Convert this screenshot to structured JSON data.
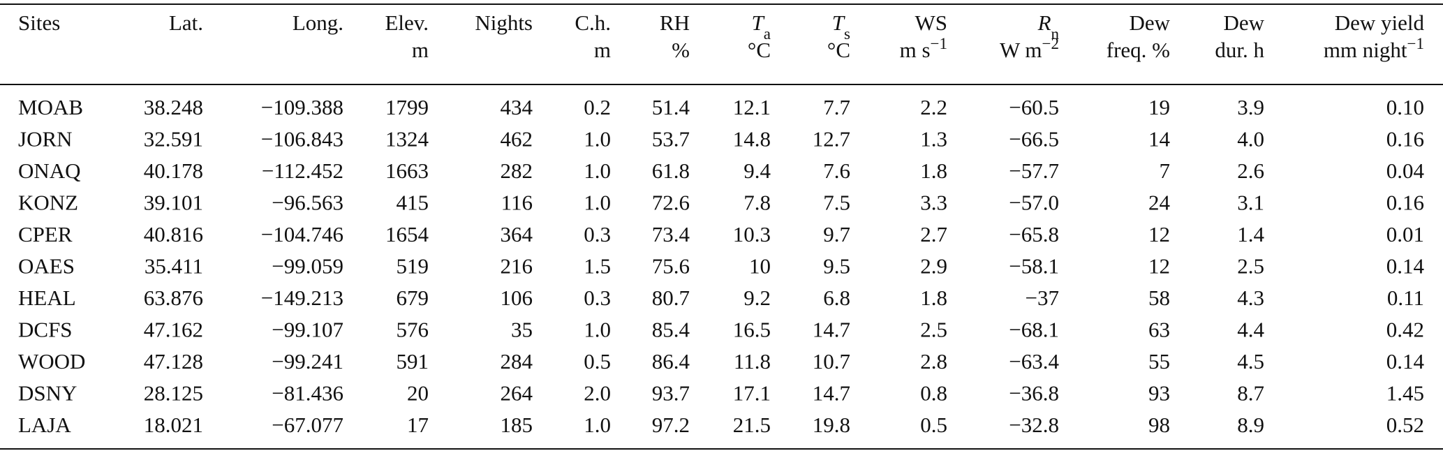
{
  "table": {
    "headers": [
      {
        "lines": [
          [
            {
              "text": "Sites"
            }
          ]
        ]
      },
      {
        "lines": [
          [
            {
              "text": "Lat."
            }
          ]
        ]
      },
      {
        "lines": [
          [
            {
              "text": "Long."
            }
          ]
        ]
      },
      {
        "lines": [
          [
            {
              "text": "Elev."
            }
          ],
          [
            {
              "text": "m"
            }
          ]
        ]
      },
      {
        "lines": [
          [
            {
              "text": "Nights"
            }
          ]
        ]
      },
      {
        "lines": [
          [
            {
              "text": "C.h."
            }
          ],
          [
            {
              "text": "m"
            }
          ]
        ]
      },
      {
        "lines": [
          [
            {
              "text": "RH"
            }
          ],
          [
            {
              "text": "%"
            }
          ]
        ]
      },
      {
        "lines": [
          [
            {
              "text": "T",
              "italic": true
            },
            {
              "text": "a",
              "sub": true
            }
          ],
          [
            {
              "text": "°C"
            }
          ]
        ]
      },
      {
        "lines": [
          [
            {
              "text": "T",
              "italic": true
            },
            {
              "text": "s",
              "sub": true
            }
          ],
          [
            {
              "text": "°C"
            }
          ]
        ]
      },
      {
        "lines": [
          [
            {
              "text": "WS"
            }
          ],
          [
            {
              "text": "m s"
            },
            {
              "text": "−1",
              "sup": true
            }
          ]
        ]
      },
      {
        "lines": [
          [
            {
              "text": "R",
              "italic": true
            },
            {
              "text": "n",
              "sub": true
            }
          ],
          [
            {
              "text": "W m"
            },
            {
              "text": "−2",
              "sup": true
            }
          ]
        ]
      },
      {
        "lines": [
          [
            {
              "text": "Dew"
            }
          ],
          [
            {
              "text": "freq. %"
            }
          ]
        ]
      },
      {
        "lines": [
          [
            {
              "text": "Dew"
            }
          ],
          [
            {
              "text": "dur. h"
            }
          ]
        ]
      },
      {
        "lines": [
          [
            {
              "text": "Dew yield"
            }
          ],
          [
            {
              "text": "mm night"
            },
            {
              "text": "−1",
              "sup": true
            }
          ]
        ]
      }
    ],
    "rows": [
      [
        "MOAB",
        "38.248",
        "−109.388",
        "1799",
        "434",
        "0.2",
        "51.4",
        "12.1",
        "7.7",
        "2.2",
        "−60.5",
        "19",
        "3.9",
        "0.10"
      ],
      [
        "JORN",
        "32.591",
        "−106.843",
        "1324",
        "462",
        "1.0",
        "53.7",
        "14.8",
        "12.7",
        "1.3",
        "−66.5",
        "14",
        "4.0",
        "0.16"
      ],
      [
        "ONAQ",
        "40.178",
        "−112.452",
        "1663",
        "282",
        "1.0",
        "61.8",
        "9.4",
        "7.6",
        "1.8",
        "−57.7",
        "7",
        "2.6",
        "0.04"
      ],
      [
        "KONZ",
        "39.101",
        "−96.563",
        "415",
        "116",
        "1.0",
        "72.6",
        "7.8",
        "7.5",
        "3.3",
        "−57.0",
        "24",
        "3.1",
        "0.16"
      ],
      [
        "CPER",
        "40.816",
        "−104.746",
        "1654",
        "364",
        "0.3",
        "73.4",
        "10.3",
        "9.7",
        "2.7",
        "−65.8",
        "12",
        "1.4",
        "0.01"
      ],
      [
        "OAES",
        "35.411",
        "−99.059",
        "519",
        "216",
        "1.5",
        "75.6",
        "10",
        "9.5",
        "2.9",
        "−58.1",
        "12",
        "2.5",
        "0.14"
      ],
      [
        "HEAL",
        "63.876",
        "−149.213",
        "679",
        "106",
        "0.3",
        "80.7",
        "9.2",
        "6.8",
        "1.8",
        "−37",
        "58",
        "4.3",
        "0.11"
      ],
      [
        "DCFS",
        "47.162",
        "−99.107",
        "576",
        "35",
        "1.0",
        "85.4",
        "16.5",
        "14.7",
        "2.5",
        "−68.1",
        "63",
        "4.4",
        "0.42"
      ],
      [
        "WOOD",
        "47.128",
        "−99.241",
        "591",
        "284",
        "0.5",
        "86.4",
        "11.8",
        "10.7",
        "2.8",
        "−63.4",
        "55",
        "4.5",
        "0.14"
      ],
      [
        "DSNY",
        "28.125",
        "−81.436",
        "20",
        "264",
        "2.0",
        "93.7",
        "17.1",
        "14.7",
        "0.8",
        "−36.8",
        "93",
        "8.7",
        "1.45"
      ],
      [
        "LAJA",
        "18.021",
        "−67.077",
        "17",
        "185",
        "1.0",
        "97.2",
        "21.5",
        "19.8",
        "0.5",
        "−32.8",
        "98",
        "8.9",
        "0.52"
      ]
    ]
  }
}
